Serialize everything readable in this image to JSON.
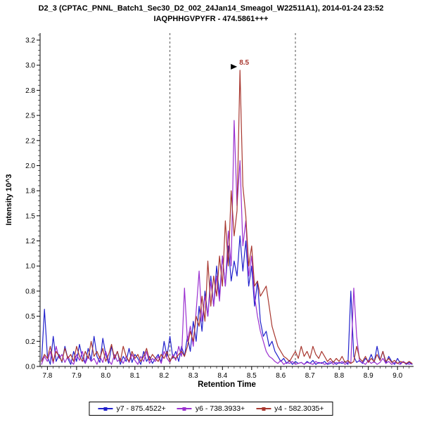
{
  "header": {
    "title_line1": "D2_3 (CPTAC_PNNL_Batch1_Sec30_D2_002_24Jan14_Smeagol_W22511A1), 2014-01-24 23:52",
    "title_line2": "IAQPHHGVPYFR - 474.5861+++"
  },
  "axes": {
    "x_label": "Retention Time",
    "y_label": "Intensity 10^3"
  },
  "chart_data": {
    "type": "line",
    "title": "D2_3 (CPTAC_PNNL_Batch1_Sec30_D2_002_24Jan14_Smeagol_W22511A1), 2014-01-24 23:52",
    "subtitle": "IAQPHHGVPYFR - 474.5861+++",
    "xlabel": "Retention Time",
    "ylabel": "Intensity 10^3",
    "xlim": [
      7.775,
      9.055
    ],
    "ylim": [
      0,
      3.32
    ],
    "grid": false,
    "legend_position": "bottom",
    "x_ticks": [
      7.8,
      7.9,
      8.0,
      8.1,
      8.2,
      8.3,
      8.4,
      8.5,
      8.6,
      8.7,
      8.8,
      8.9,
      9.0
    ],
    "x_tick_labels": [
      "7.8",
      "7.9",
      "8.0",
      "8.1",
      "8.2",
      "8.3",
      "8.4",
      "8.5",
      "8.6",
      "8.7",
      "8.8",
      "8.9",
      "9.0"
    ],
    "y_ticks": [
      0,
      0.25,
      0.5,
      0.75,
      1.0,
      1.25,
      1.5,
      1.75,
      2.0,
      2.25,
      2.5,
      2.75,
      3.0,
      3.25
    ],
    "y_tick_labels": [
      "0.0",
      "0.2",
      "0.5",
      "0.8",
      "1.0",
      "1.2",
      "1.5",
      "1.8",
      "2.0",
      "2.2",
      "2.5",
      "2.8",
      "3.0",
      "3.2"
    ],
    "integration_boundaries": [
      8.22,
      8.65
    ],
    "annotation": {
      "text": "8.5",
      "x": 8.46,
      "y": 2.95
    },
    "x_start": 7.78,
    "x_step": 0.01,
    "series": [
      {
        "name": "y7 - 875.4522+",
        "color": "#2121cc",
        "values": [
          0.05,
          0.57,
          0.1,
          0.02,
          0.3,
          0.05,
          0.12,
          0.04,
          0.2,
          0.08,
          0.02,
          0.15,
          0.05,
          0.22,
          0.08,
          0.03,
          0.18,
          0.06,
          0.3,
          0.1,
          0.04,
          0.28,
          0.12,
          0.03,
          0.2,
          0.07,
          0.15,
          0.02,
          0.1,
          0.05,
          0.18,
          0.04,
          0.12,
          0.08,
          0.02,
          0.15,
          0.05,
          0.1,
          0.03,
          0.08,
          0.12,
          0.04,
          0.25,
          0.1,
          0.3,
          0.08,
          0.15,
          0.05,
          0.2,
          0.1,
          0.3,
          0.15,
          0.45,
          0.25,
          0.6,
          0.35,
          0.75,
          0.5,
          0.9,
          0.6,
          1.0,
          0.7,
          1.1,
          0.8,
          1.2,
          0.85,
          1.05,
          0.9,
          1.3,
          0.95,
          1.25,
          0.8,
          1.0,
          0.6,
          0.85,
          0.45,
          0.3,
          0.35,
          0.2,
          0.25,
          0.15,
          0.1,
          0.05,
          0.08,
          0.03,
          0.06,
          0.02,
          0.05,
          0.03,
          0.04,
          0.02,
          0.05,
          0.03,
          0.06,
          0.02,
          0.04,
          0.03,
          0.05,
          0.02,
          0.03,
          0.05,
          0.02,
          0.04,
          0.03,
          0.05,
          0.02,
          0.75,
          0.1,
          0.04,
          0.06,
          0.03,
          0.08,
          0.05,
          0.12,
          0.04,
          0.2,
          0.06,
          0.15,
          0.03,
          0.1,
          0.05,
          0.02,
          0.08,
          0.03,
          0.05,
          0.02,
          0.04,
          0.02
        ]
      },
      {
        "name": "y6 - 738.3933+",
        "color": "#9b30d0",
        "values": [
          0.02,
          0.1,
          0.05,
          0.15,
          0.03,
          0.2,
          0.08,
          0.12,
          0.04,
          0.1,
          0.05,
          0.02,
          0.12,
          0.06,
          0.15,
          0.03,
          0.1,
          0.05,
          0.08,
          0.02,
          0.1,
          0.04,
          0.15,
          0.06,
          0.02,
          0.12,
          0.05,
          0.08,
          0.03,
          0.1,
          0.04,
          0.12,
          0.06,
          0.02,
          0.1,
          0.05,
          0.15,
          0.03,
          0.08,
          0.05,
          0.1,
          0.03,
          0.15,
          0.08,
          0.04,
          0.12,
          0.06,
          0.2,
          0.1,
          0.78,
          0.25,
          0.4,
          0.2,
          0.55,
          0.95,
          0.45,
          0.7,
          0.5,
          0.85,
          0.6,
          0.9,
          0.65,
          1.1,
          0.8,
          1.35,
          1.0,
          2.45,
          1.6,
          2.05,
          1.2,
          1.45,
          0.9,
          1.1,
          0.7,
          0.5,
          0.35,
          0.25,
          0.15,
          0.1,
          0.08,
          0.05,
          0.03,
          0.06,
          0.02,
          0.04,
          0.03,
          0.05,
          0.02,
          0.03,
          0.04,
          0.02,
          0.04,
          0.03,
          0.02,
          0.05,
          0.03,
          0.04,
          0.02,
          0.03,
          0.05,
          0.02,
          0.04,
          0.03,
          0.05,
          0.02,
          0.04,
          0.03,
          0.78,
          0.3,
          0.05,
          0.04,
          0.02,
          0.06,
          0.03,
          0.05,
          0.02,
          0.04,
          0.08,
          0.03,
          0.05,
          0.02,
          0.04,
          0.03,
          0.02,
          0.05,
          0.03,
          0.02,
          0.03
        ]
      },
      {
        "name": "y4 - 582.3035+",
        "color": "#a8372f",
        "values": [
          0.05,
          0.12,
          0.08,
          0.2,
          0.05,
          0.15,
          0.1,
          0.05,
          0.18,
          0.08,
          0.12,
          0.05,
          0.2,
          0.1,
          0.05,
          0.15,
          0.08,
          0.25,
          0.1,
          0.15,
          0.08,
          0.18,
          0.05,
          0.12,
          0.22,
          0.08,
          0.15,
          0.05,
          0.2,
          0.1,
          0.05,
          0.15,
          0.08,
          0.12,
          0.05,
          0.1,
          0.18,
          0.06,
          0.12,
          0.08,
          0.05,
          0.12,
          0.08,
          0.15,
          0.05,
          0.1,
          0.08,
          0.12,
          0.15,
          0.1,
          0.2,
          0.35,
          0.25,
          0.5,
          0.4,
          0.7,
          0.45,
          1.05,
          0.6,
          0.9,
          0.7,
          1.1,
          0.8,
          1.45,
          1.0,
          1.75,
          1.3,
          1.55,
          2.95,
          1.8,
          1.5,
          1.0,
          1.2,
          0.8,
          0.85,
          0.7,
          0.75,
          0.8,
          0.6,
          0.4,
          0.3,
          0.2,
          0.15,
          0.1,
          0.08,
          0.05,
          0.1,
          0.15,
          0.08,
          0.2,
          0.1,
          0.15,
          0.08,
          0.2,
          0.12,
          0.08,
          0.15,
          0.1,
          0.05,
          0.08,
          0.04,
          0.08,
          0.05,
          0.1,
          0.04,
          0.06,
          0.03,
          0.05,
          0.2,
          0.08,
          0.05,
          0.1,
          0.04,
          0.08,
          0.05,
          0.12,
          0.06,
          0.15,
          0.05,
          0.08,
          0.04,
          0.06,
          0.03,
          0.05,
          0.04,
          0.03,
          0.05,
          0.03
        ]
      }
    ]
  }
}
